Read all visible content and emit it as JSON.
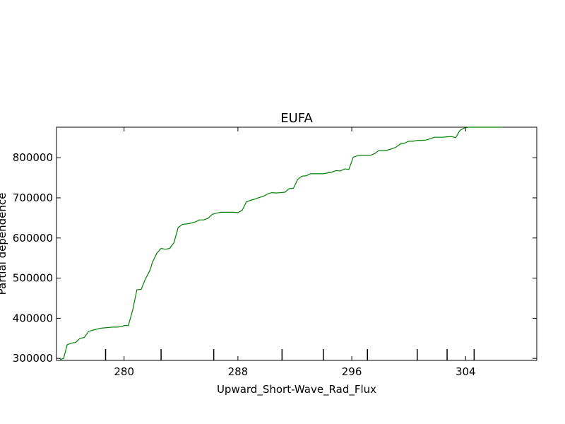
{
  "chart_data": {
    "type": "line",
    "title": "EUFA",
    "xlabel": "Upward_Short-Wave_Rad_Flux",
    "ylabel": "Partial dependence",
    "xlim": [
      275.25,
      309.0
    ],
    "ylim": [
      295000,
      876000
    ],
    "xticks": [
      280,
      288,
      296,
      304
    ],
    "xtick_labels": [
      "280",
      "288",
      "296",
      "304"
    ],
    "yticks": [
      300000,
      400000,
      500000,
      600000,
      700000,
      800000
    ],
    "ytick_labels": [
      "300000",
      "400000",
      "500000",
      "600000",
      "700000",
      "800000"
    ],
    "grid": false,
    "colors": {
      "line": "#008000"
    },
    "rug_x": [
      278.7,
      282.6,
      286.3,
      291.1,
      294.0,
      297.1,
      300.6,
      302.7,
      304.6
    ],
    "series": [
      {
        "x": [
          275.5,
          275.75,
          276.0,
          276.3,
          276.6,
          276.9,
          277.2,
          277.5,
          277.75,
          278.0,
          278.3,
          278.6,
          278.9,
          279.2,
          279.5,
          279.8,
          280.0,
          280.3,
          280.6,
          280.9,
          281.2,
          281.5,
          281.8,
          282.0,
          282.3,
          282.6,
          282.9,
          283.2,
          283.5,
          283.8,
          284.1,
          284.4,
          284.7,
          285.0,
          285.3,
          285.6,
          285.9,
          286.2,
          286.5,
          286.8,
          287.1,
          287.4,
          287.7,
          288.0,
          288.3,
          288.6,
          288.9,
          289.2,
          289.5,
          289.8,
          290.1,
          290.4,
          290.7,
          291.0,
          291.3,
          291.6,
          291.9,
          292.2,
          292.5,
          292.8,
          293.1,
          293.4,
          293.7,
          294.0,
          294.3,
          294.6,
          294.9,
          295.2,
          295.5,
          295.8,
          296.1,
          296.4,
          296.7,
          297.0,
          297.3,
          297.6,
          297.9,
          298.2,
          298.5,
          298.8,
          299.1,
          299.4,
          299.7,
          300.0,
          300.3,
          300.6,
          300.9,
          301.2,
          301.5,
          301.8,
          302.1,
          302.4,
          302.7,
          303.0,
          303.3,
          303.6,
          303.9,
          304.2,
          304.5,
          304.8,
          305.1,
          305.4,
          305.7,
          306.0,
          306.3,
          306.6
        ],
        "values": [
          297000,
          300000,
          334000,
          338000,
          340000,
          350000,
          352000,
          367000,
          370000,
          372000,
          375000,
          376000,
          377000,
          378000,
          378000,
          379000,
          382000,
          382000,
          420000,
          471000,
          472000,
          498000,
          518000,
          540000,
          562000,
          574000,
          572000,
          574000,
          588000,
          626000,
          634000,
          635000,
          637000,
          640000,
          645000,
          645000,
          649000,
          659000,
          662000,
          664000,
          664000,
          664000,
          664000,
          663000,
          669000,
          690000,
          694000,
          697000,
          701000,
          704000,
          710000,
          713000,
          712000,
          713000,
          714000,
          723000,
          724000,
          746000,
          754000,
          755000,
          760000,
          760000,
          760000,
          760000,
          762000,
          764000,
          768000,
          767000,
          772000,
          771000,
          801000,
          805000,
          806000,
          806000,
          806000,
          810000,
          818000,
          817000,
          819000,
          822000,
          826000,
          834000,
          836000,
          841000,
          841000,
          843000,
          843000,
          844000,
          847000,
          851000,
          851000,
          851000,
          852000,
          853000,
          850000,
          868000,
          874000,
          876000,
          876000,
          876000,
          876000,
          876000,
          876000,
          876000,
          876000,
          876000
        ]
      }
    ]
  }
}
